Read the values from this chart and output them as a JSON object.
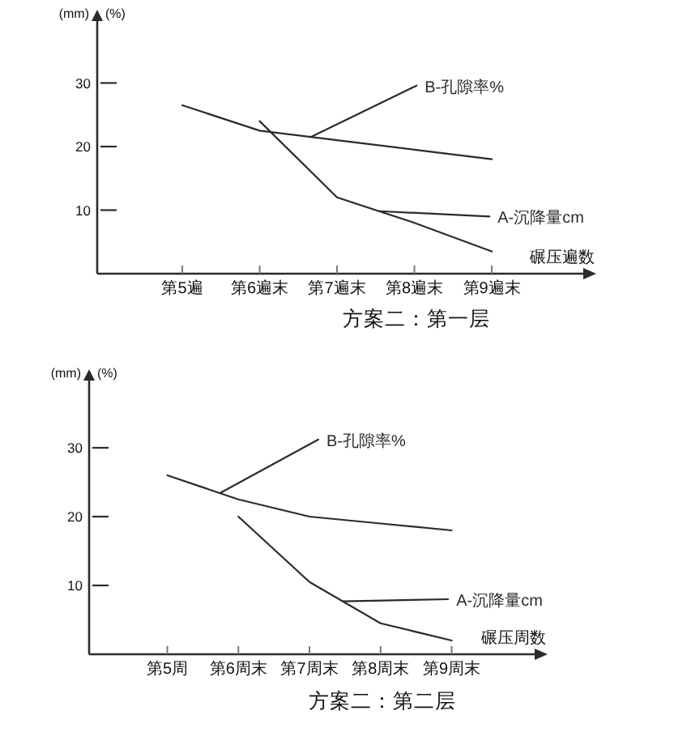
{
  "chart_data": [
    {
      "type": "line",
      "title": "方案二：第一层",
      "xlabel": "碾压遍数",
      "ylabel": "(mm)",
      "annotations": [
        "(%)"
      ],
      "categories": [
        "第5遍",
        "第6遍末",
        "第7遍末",
        "第8遍末",
        "第9遍末"
      ],
      "series": [
        {
          "name": "B-孔隙率%",
          "color": "#2b2b2b",
          "values": [
            26.5,
            22.5,
            21,
            19.5,
            18
          ]
        },
        {
          "name": "A-沉降量cm",
          "color": "#2b2b2b",
          "values": [
            null,
            24,
            12,
            8,
            3.5
          ]
        }
      ],
      "ylim": [
        0,
        40
      ],
      "yticks": [
        10,
        20,
        30
      ],
      "line_style": "solid"
    },
    {
      "type": "line",
      "title": "方案二：第二层",
      "xlabel": "碾压周数",
      "ylabel": "(mm)",
      "annotations": [
        "(%)"
      ],
      "categories": [
        "第5周",
        "第6周末",
        "第7周末",
        "第8周末",
        "第9周末"
      ],
      "series": [
        {
          "name": "B-孔隙率%",
          "color": "#2b2b2b",
          "values": [
            26,
            22.5,
            20,
            19,
            18
          ]
        },
        {
          "name": "A-沉降量cm",
          "color": "#2b2b2b",
          "values": [
            null,
            20,
            10.5,
            4.5,
            2
          ]
        }
      ],
      "ylim": [
        0,
        40
      ],
      "yticks": [
        10,
        20,
        30
      ],
      "line_style": "solid"
    }
  ]
}
